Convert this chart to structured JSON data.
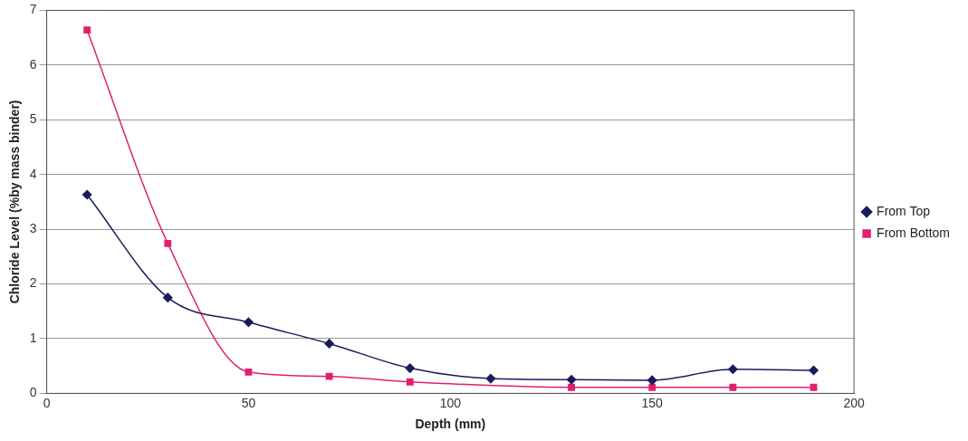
{
  "chart_data": {
    "type": "line",
    "xlabel": "Depth (mm)",
    "ylabel": "Chloride Level (%by mass binder)",
    "xlim": [
      0,
      200
    ],
    "xticks": [
      0,
      50,
      100,
      150,
      200
    ],
    "ylim": [
      0,
      7
    ],
    "yticks": [
      0,
      1,
      2,
      3,
      4,
      5,
      6,
      7
    ],
    "grid": "y",
    "legend": "right",
    "series": [
      {
        "name": "From Top",
        "color": "#1a1a5e",
        "marker": "diamond",
        "x": [
          10,
          30,
          50,
          70,
          90,
          110,
          130,
          150,
          170,
          190
        ],
        "values": [
          3.63,
          1.75,
          1.3,
          0.91,
          0.46,
          0.27,
          0.25,
          0.24,
          0.44,
          0.42
        ]
      },
      {
        "name": "From Bottom",
        "color": "#e0206e",
        "marker": "square",
        "x": [
          10,
          30,
          50,
          70,
          90,
          130,
          150,
          170,
          190
        ],
        "values": [
          6.64,
          2.74,
          0.39,
          0.31,
          0.21,
          0.11,
          0.11,
          0.11,
          0.11
        ]
      }
    ]
  }
}
